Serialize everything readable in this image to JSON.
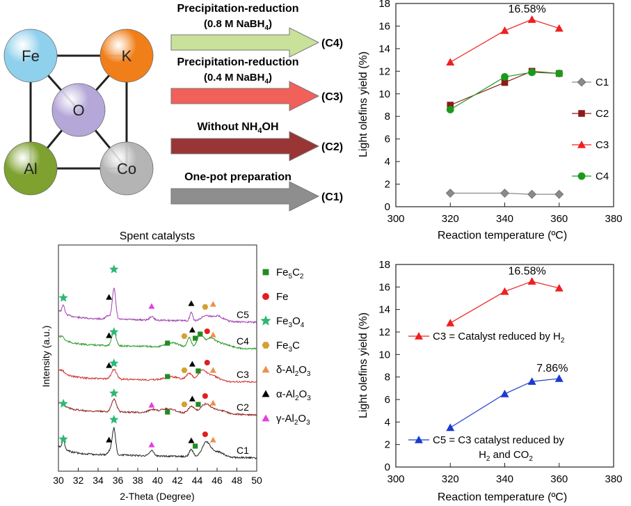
{
  "scheme": {
    "elements": [
      {
        "symbol": "Fe",
        "color": "#8fd0ec"
      },
      {
        "symbol": "K",
        "color": "#f07f1a"
      },
      {
        "symbol": "O",
        "color": "#b5a7d8"
      },
      {
        "symbol": "Al",
        "color": "#7ea12f"
      },
      {
        "symbol": "Co",
        "color": "#b4b4b4"
      }
    ],
    "routes": [
      {
        "line1": "Precipitation-reduction",
        "line2_pre": "(0.8 M NaBH",
        "line2_sub": "4",
        "line2_post": ")",
        "product": "(C4)",
        "color": "#c8e29a"
      },
      {
        "line1": "Precipitation-reduction",
        "line2_pre": "(0.4 M NaBH",
        "line2_sub": "4",
        "line2_post": ")",
        "product": "(C3)",
        "color": "#f2605a"
      },
      {
        "line1_pre": "Without NH",
        "line1_sub": "4",
        "line1_post": "OH",
        "product": "(C2)",
        "color": "#9a3535"
      },
      {
        "line1": "One-pot preparation",
        "product": "(C1)",
        "color": "#8e8e8e"
      }
    ]
  },
  "xrd": {
    "title": "Spent catalysts",
    "legend": [
      {
        "label_pre": "Fe",
        "s1": "5",
        "mid": "C",
        "s2": "2",
        "marker": "square",
        "color": "#228b22"
      },
      {
        "label_pre": "Fe",
        "marker": "circle",
        "color": "#e02020"
      },
      {
        "label_pre": "Fe",
        "s1": "3",
        "mid": "O",
        "s2": "4",
        "marker": "star",
        "color": "#2eb872"
      },
      {
        "label_pre": "Fe",
        "s1": "3",
        "mid": "C",
        "marker": "hexagon",
        "color": "#d4a030"
      },
      {
        "label_pre": "δ-Al",
        "s1": "2",
        "mid": "O",
        "s2": "3",
        "marker": "triangle",
        "color": "#f0904a"
      },
      {
        "label_pre": "α-Al",
        "s1": "2",
        "mid": "O",
        "s2": "3",
        "marker": "triangle",
        "color": "#000000"
      },
      {
        "label_pre": "γ-Al",
        "s1": "2",
        "mid": "O",
        "s2": "3",
        "marker": "triangle",
        "color": "#e040e0"
      }
    ]
  },
  "chart_data": [
    {
      "type": "line",
      "ylabel": "Light olefins yield (%)",
      "xlabel": "Reaction temperature (ºC)",
      "xlim": [
        300,
        380
      ],
      "ylim": [
        0,
        18
      ],
      "xticks": [
        300,
        320,
        340,
        360,
        380
      ],
      "yticks": [
        0,
        2,
        4,
        6,
        8,
        10,
        12,
        14,
        16,
        18
      ],
      "x": [
        320,
        340,
        350,
        360
      ],
      "series": [
        {
          "name": "C1",
          "values": [
            1.2,
            1.2,
            1.1,
            1.1
          ],
          "color": "#8a8a8a",
          "marker": "diamond"
        },
        {
          "name": "C2",
          "values": [
            9.0,
            11.0,
            12.0,
            11.8
          ],
          "color": "#8b1a1a",
          "marker": "square"
        },
        {
          "name": "C3",
          "values": [
            12.8,
            15.6,
            16.58,
            15.8
          ],
          "color": "#ee2020",
          "marker": "triangle"
        },
        {
          "name": "C4",
          "values": [
            8.6,
            11.5,
            11.9,
            11.8
          ],
          "color": "#1a9a1a",
          "marker": "circle"
        }
      ],
      "annotations": [
        {
          "text": "16.58%",
          "x": 350,
          "y": 16.58
        }
      ]
    },
    {
      "type": "line",
      "ylabel": "Light olefins yield (%)",
      "xlabel": "Reaction temperature (ºC)",
      "xlim": [
        300,
        380
      ],
      "ylim": [
        0,
        18
      ],
      "xticks": [
        300,
        320,
        340,
        360,
        380
      ],
      "yticks": [
        0,
        2,
        4,
        6,
        8,
        10,
        12,
        14,
        16,
        18
      ],
      "x": [
        320,
        340,
        350,
        360
      ],
      "series": [
        {
          "name": "C3",
          "label_pre": "C3 = Catalyst reduced by H",
          "label_sub": "2",
          "values": [
            12.8,
            15.6,
            16.5,
            15.9
          ],
          "color": "#ee2020",
          "marker": "triangle"
        },
        {
          "name": "C5",
          "label_pre": "C5 = C3 catalyst reduced by",
          "label2_pre": "H",
          "label2_sub": "2",
          "label2_post": " and CO",
          "label2_sub2": "2",
          "values": [
            3.5,
            6.5,
            7.6,
            7.86
          ],
          "color": "#1a3ad0",
          "marker": "triangle"
        }
      ],
      "annotations": [
        {
          "text": "16.58%",
          "x": 350,
          "y": 16.5
        },
        {
          "text": "7.86%",
          "x": 360,
          "y": 7.86
        }
      ]
    },
    {
      "type": "line",
      "ylabel": "Intensity (a.u.)",
      "xlabel": "2-Theta (Degree)",
      "xlim": [
        30,
        50
      ],
      "xticks": [
        30,
        32,
        34,
        36,
        38,
        40,
        42,
        44,
        46,
        48,
        50
      ],
      "series": [
        {
          "name": "C5",
          "color": "#a040b0"
        },
        {
          "name": "C4",
          "color": "#2a9a2a"
        },
        {
          "name": "C3",
          "color": "#d03030"
        },
        {
          "name": "C2",
          "color": "#8b1a1a"
        },
        {
          "name": "C1",
          "color": "#222222"
        }
      ]
    }
  ]
}
